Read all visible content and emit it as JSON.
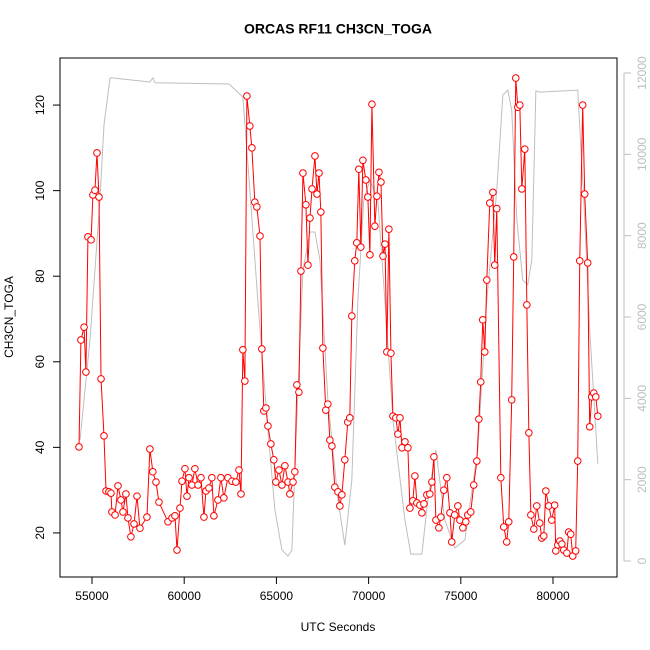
{
  "chart_data": {
    "type": "line",
    "title": "ORCAS RF11 CH3CN_TOGA",
    "x_label": "UTC Seconds",
    "y_label": "CH3CN_TOGA",
    "xlim": [
      53265,
      83470
    ],
    "ylim": [
      9.7,
      131.0
    ],
    "y2lim": [
      -393,
      12369
    ],
    "xticks": [
      55000,
      60000,
      65000,
      70000,
      75000,
      80000
    ],
    "yticks": [
      20,
      40,
      60,
      80,
      100,
      120
    ],
    "y2ticks": [
      0,
      2000,
      4000,
      6000,
      8000,
      10000,
      12000
    ],
    "y2_color": "#bebebe",
    "series": [
      {
        "color": "#ff0000",
        "marker": "circle",
        "x": [
          54295,
          54400,
          54570,
          54670,
          54780,
          54950,
          55050,
          55160,
          55270,
          55380,
          55490,
          55650,
          55760,
          55920,
          56030,
          56080,
          56250,
          56410,
          56570,
          56680,
          56840,
          56950,
          57110,
          57280,
          57440,
          57600,
          57980,
          58140,
          58300,
          58470,
          58630,
          59120,
          59340,
          59500,
          59610,
          59770,
          59880,
          60040,
          60150,
          60260,
          60420,
          60580,
          60750,
          60910,
          61070,
          61180,
          61340,
          61500,
          61610,
          61830,
          61990,
          62150,
          62370,
          62590,
          62800,
          62970,
          63080,
          63180,
          63290,
          63400,
          63560,
          63670,
          63830,
          63940,
          64110,
          64210,
          64320,
          64430,
          64540,
          64700,
          64860,
          64970,
          65140,
          65300,
          65460,
          65630,
          65730,
          65900,
          66000,
          66110,
          66220,
          66330,
          66440,
          66600,
          66710,
          66820,
          66930,
          67090,
          67200,
          67310,
          67410,
          67520,
          67680,
          67790,
          67900,
          68010,
          68170,
          68340,
          68440,
          68550,
          68710,
          68870,
          68980,
          69090,
          69250,
          69360,
          69470,
          69580,
          69690,
          69850,
          69960,
          70070,
          70180,
          70340,
          70450,
          70560,
          70670,
          70780,
          70890,
          70990,
          71100,
          71210,
          71320,
          71480,
          71590,
          71700,
          71810,
          71970,
          72130,
          72240,
          72400,
          72510,
          72620,
          72780,
          72890,
          73000,
          73160,
          73320,
          73430,
          73540,
          73650,
          73810,
          73920,
          74080,
          74240,
          74410,
          74510,
          74670,
          74840,
          74950,
          75110,
          75270,
          75380,
          75540,
          75700,
          75870,
          75980,
          76080,
          76190,
          76300,
          76410,
          76570,
          76740,
          76840,
          76950,
          77170,
          77330,
          77490,
          77600,
          77760,
          77870,
          77980,
          78090,
          78200,
          78310,
          78470,
          78580,
          78690,
          78800,
          78960,
          79120,
          79280,
          79390,
          79500,
          79610,
          79770,
          79930,
          80090,
          80150,
          80260,
          80370,
          80480,
          80580,
          80750,
          80850,
          80960,
          81070,
          81230,
          81340,
          81450,
          81610,
          81720,
          81880,
          81990,
          82100,
          82210,
          82320,
          82430
        ],
        "values": [
          40.1,
          65.1,
          68.1,
          57.6,
          89.2,
          88.5,
          99,
          100.1,
          108.8,
          98.5,
          56,
          42.7,
          29.8,
          29.6,
          29.3,
          24.9,
          24.2,
          31,
          27.7,
          24.9,
          29.1,
          23.5,
          19.1,
          22.1,
          28.6,
          21.1,
          23.7,
          39.6,
          34.3,
          31.9,
          27.2,
          22.6,
          23.5,
          24,
          16,
          25.8,
          32.1,
          35,
          28.6,
          32.9,
          31.2,
          35,
          31.2,
          32.9,
          23.7,
          29.8,
          30.5,
          32.9,
          24,
          27.7,
          32.9,
          28.2,
          32.9,
          32.1,
          31.9,
          34.7,
          29.1,
          62.8,
          55.5,
          122.1,
          115.1,
          110,
          97.3,
          96.2,
          89.4,
          63,
          48.5,
          49.2,
          45,
          40.8,
          37.1,
          31.9,
          34.7,
          31.2,
          35.7,
          31.9,
          29.1,
          31.9,
          34.3,
          54.6,
          52.9,
          81.2,
          104.1,
          96.7,
          82.6,
          93.6,
          100.4,
          108.1,
          99.2,
          104.1,
          95,
          63.2,
          48.7,
          50.1,
          41.7,
          40.3,
          30.7,
          29.6,
          26.3,
          28.9,
          37.1,
          45.9,
          46.9,
          70.7,
          83.6,
          87.8,
          105,
          86.8,
          107.1,
          102.5,
          98.5,
          85,
          120.2,
          91.7,
          98.7,
          104.3,
          102,
          84.7,
          87.5,
          62.3,
          91,
          62,
          47.3,
          46.9,
          43.1,
          46.9,
          39.9,
          41.3,
          39.9,
          25.8,
          27.5,
          33.3,
          27,
          26.5,
          24.7,
          26.8,
          28.9,
          29.1,
          31.9,
          37.8,
          23,
          21.2,
          23.7,
          30,
          32.9,
          24.7,
          17.9,
          24.2,
          26.3,
          23,
          21.2,
          22.6,
          24.2,
          24.9,
          31.2,
          36.8,
          46.6,
          55.3,
          69.8,
          62.3,
          79.1,
          97.1,
          99.6,
          82.6,
          95.8,
          32.9,
          21.4,
          17.9,
          22.6,
          51.1,
          84.5,
          126.3,
          119.5,
          120,
          100.4,
          109.7,
          73.3,
          43.4,
          24.2,
          20.9,
          26.3,
          22.3,
          18.8,
          19.3,
          29.8,
          26.3,
          23,
          26.5,
          15.8,
          17.2,
          18.1,
          17.4,
          16,
          15.3,
          20.2,
          19.7,
          14.6,
          15.8,
          36.8,
          83.6,
          120,
          99.2,
          83.1,
          44.8,
          51.8,
          52.7,
          51.8,
          47.3
        ]
      },
      {
        "color": "#bebebe",
        "axis": "y2",
        "x": [
          54350,
          54890,
          55430,
          55650,
          55980,
          56080,
          58140,
          58300,
          58410,
          62430,
          63180,
          63560,
          63990,
          64540,
          64920,
          65300,
          65630,
          65840,
          66060,
          66440,
          66820,
          67090,
          67360,
          67790,
          68340,
          68710,
          69090,
          69420,
          69740,
          70070,
          70500,
          70880,
          71320,
          71970,
          72290,
          72890,
          73210,
          73650,
          74130,
          74670,
          75220,
          75920,
          76410,
          76950,
          77280,
          77550,
          77760,
          78040,
          78360,
          78630,
          78850,
          79070,
          79280,
          81340,
          81670,
          81990,
          82320,
          82430
        ],
        "values": [
          2975,
          5430,
          8880,
          10720,
          11880,
          11880,
          11780,
          11880,
          11760,
          11730,
          11410,
          9120,
          6420,
          3220,
          1250,
          270,
          120,
          270,
          2980,
          7160,
          8090,
          8090,
          7400,
          3960,
          1500,
          390,
          1990,
          6420,
          8880,
          9370,
          8880,
          6420,
          3470,
          1010,
          170,
          170,
          1500,
          2730,
          1010,
          320,
          520,
          2730,
          6420,
          9120,
          11460,
          11580,
          11090,
          8380,
          6910,
          6790,
          7400,
          11560,
          11530,
          11580,
          8880,
          5680,
          3220,
          2390
        ]
      }
    ]
  }
}
